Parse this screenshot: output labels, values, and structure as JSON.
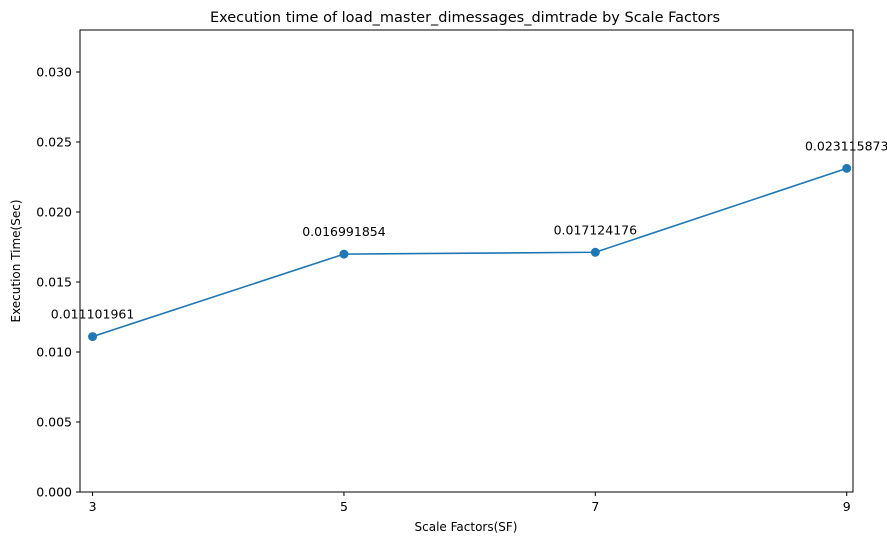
{
  "chart_data": {
    "type": "line",
    "title": "Execution time of load_master_dimessages_dimtrade by Scale Factors",
    "xlabel": "Scale Factors(SF)",
    "ylabel": "Execution Time(Sec)",
    "x": [
      3,
      5,
      7,
      9
    ],
    "x_tick_labels": [
      "3",
      "5",
      "7",
      "9"
    ],
    "xlim": [
      2.9,
      9.05
    ],
    "ylim": [
      0,
      0.033
    ],
    "y_ticks": [
      0,
      0.005,
      0.01,
      0.015,
      0.02,
      0.025,
      0.03
    ],
    "y_tick_labels": [
      "0.000",
      "0.005",
      "0.010",
      "0.015",
      "0.020",
      "0.025",
      "0.030"
    ],
    "series": [
      {
        "values": [
          0.011101961,
          0.016991854,
          0.017124176,
          0.023115873
        ],
        "labels": [
          "0.011101961",
          "0.016991854",
          "0.017124176",
          "0.023115873"
        ],
        "color": "#1f77b4",
        "marker": "circle"
      }
    ],
    "grid": false,
    "legend": "none"
  }
}
